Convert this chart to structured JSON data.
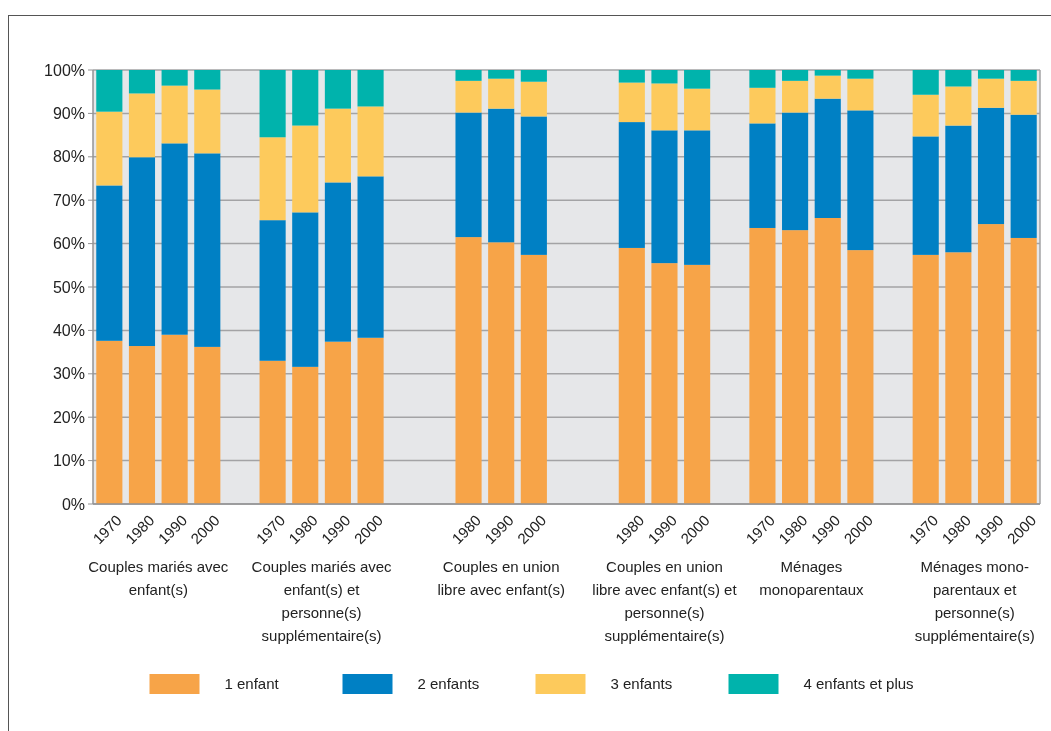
{
  "chart_data": {
    "type": "bar",
    "stacked": true,
    "categories": [
      "1970",
      "1980",
      "1990",
      "2000",
      null,
      "1970",
      "1980",
      "1990",
      "2000",
      null,
      null,
      "1980",
      "1990",
      "2000",
      null,
      null,
      "1980",
      "1990",
      "2000",
      null,
      "1970",
      "1980",
      "1990",
      "2000",
      null,
      "1970",
      "1980",
      "1990",
      "2000"
    ],
    "series": [
      {
        "name": "1 enfant",
        "color": "#f7a448",
        "values": [
          37.6,
          36.4,
          39.0,
          36.2,
          null,
          33.0,
          31.6,
          37.4,
          38.3,
          null,
          null,
          61.5,
          60.3,
          57.4,
          null,
          null,
          59.0,
          55.5,
          55.1,
          null,
          63.6,
          63.1,
          65.9,
          58.5,
          null,
          57.4,
          58.0,
          64.5,
          61.3
        ]
      },
      {
        "name": "2 enfants",
        "color": "#0080c4",
        "values": [
          35.8,
          43.5,
          44.1,
          44.6,
          null,
          32.4,
          35.6,
          36.7,
          37.2,
          null,
          null,
          28.7,
          30.8,
          31.9,
          null,
          null,
          29.0,
          30.6,
          31.0,
          null,
          24.1,
          27.1,
          27.5,
          32.2,
          null,
          27.3,
          29.2,
          26.8,
          28.4
        ]
      },
      {
        "name": "3 enfants",
        "color": "#fdca5c",
        "values": [
          17.0,
          14.7,
          13.3,
          14.7,
          null,
          19.1,
          20.0,
          17.0,
          16.1,
          null,
          null,
          7.3,
          6.9,
          8.0,
          null,
          null,
          9.1,
          10.8,
          9.6,
          null,
          8.2,
          7.3,
          5.3,
          7.3,
          null,
          9.6,
          9.0,
          6.7,
          7.8
        ]
      },
      {
        "name": "4 enfants et plus",
        "color": "#00b3ac",
        "values": [
          9.6,
          5.4,
          3.6,
          4.5,
          null,
          15.5,
          12.8,
          8.9,
          8.4,
          null,
          null,
          2.5,
          2.0,
          2.7,
          null,
          null,
          2.9,
          3.1,
          4.3,
          null,
          4.1,
          2.5,
          1.3,
          2.0,
          null,
          5.7,
          3.8,
          2.0,
          2.5
        ]
      }
    ],
    "ylim": [
      0,
      100
    ],
    "yticks": [
      {
        "value": 0,
        "label": "0%"
      },
      {
        "value": 10,
        "label": "10%"
      },
      {
        "value": 20,
        "label": "20%"
      },
      {
        "value": 30,
        "label": "30%"
      },
      {
        "value": 40,
        "label": "40%"
      },
      {
        "value": 50,
        "label": "50%"
      },
      {
        "value": 60,
        "label": "60%"
      },
      {
        "value": 70,
        "label": "70%"
      },
      {
        "value": 80,
        "label": "80%"
      },
      {
        "value": 90,
        "label": "90%"
      },
      {
        "value": 100,
        "label": "100%"
      }
    ],
    "grid": "y",
    "legend": "bottom",
    "annotations": [
      "Couples mariés avec enfant(s)",
      "Couples mariés avec enfant(s) et personne(s) supplémentaire(s)",
      "Couples en union libre avec enfant(s)",
      "Couples en union libre avec enfant(s) et personne(s) supplémentaire(s)",
      "Ménages monoparentaux",
      "Ménages mono-parentaux et personne(s) supplémentaire(s)"
    ]
  }
}
